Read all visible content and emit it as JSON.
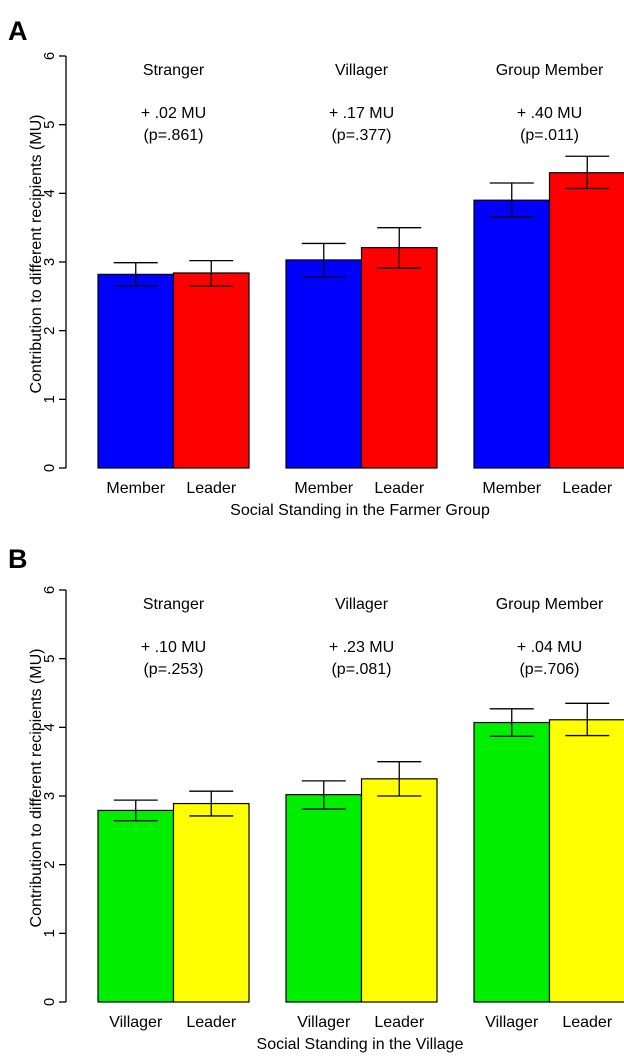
{
  "chart_data": [
    {
      "panel": "A",
      "type": "bar",
      "ylabel": "Contribution to different recipients (MU)",
      "xlabel": "Social Standing in the Farmer Group",
      "ylim": [
        0,
        6
      ],
      "yticks": [
        "0",
        "1",
        "2",
        "3",
        "4",
        "5",
        "6"
      ],
      "groups": [
        {
          "name": "Stranger",
          "effect": "+ .02 MU",
          "p": "(p=.861)",
          "bars": [
            {
              "label": "Member",
              "value": 2.82,
              "err_low": 2.65,
              "err_high": 2.99,
              "color": "#0000ff"
            },
            {
              "label": "Leader",
              "value": 2.84,
              "err_low": 2.65,
              "err_high": 3.02,
              "color": "#ff0000"
            }
          ]
        },
        {
          "name": "Villager",
          "effect": "+ .17 MU",
          "p": "(p=.377)",
          "bars": [
            {
              "label": "Member",
              "value": 3.03,
              "err_low": 2.78,
              "err_high": 3.27,
              "color": "#0000ff"
            },
            {
              "label": "Leader",
              "value": 3.21,
              "err_low": 2.91,
              "err_high": 3.5,
              "color": "#ff0000"
            }
          ]
        },
        {
          "name": "Group Member",
          "effect": "+ .40 MU",
          "p": "(p=.011)",
          "bars": [
            {
              "label": "Member",
              "value": 3.9,
              "err_low": 3.66,
              "err_high": 4.15,
              "color": "#0000ff"
            },
            {
              "label": "Leader",
              "value": 4.3,
              "err_low": 4.07,
              "err_high": 4.54,
              "color": "#ff0000"
            }
          ]
        }
      ]
    },
    {
      "panel": "B",
      "type": "bar",
      "ylabel": "Contribution to different recipients (MU)",
      "xlabel": "Social Standing in the Village",
      "ylim": [
        0,
        6
      ],
      "yticks": [
        "0",
        "1",
        "2",
        "3",
        "4",
        "5",
        "6"
      ],
      "groups": [
        {
          "name": "Stranger",
          "effect": "+ .10 MU",
          "p": "(p=.253)",
          "bars": [
            {
              "label": "Villager",
              "value": 2.79,
              "err_low": 2.64,
              "err_high": 2.94,
              "color": "#00ee00"
            },
            {
              "label": "Leader",
              "value": 2.89,
              "err_low": 2.71,
              "err_high": 3.07,
              "color": "#ffff00"
            }
          ]
        },
        {
          "name": "Villager",
          "effect": "+ .23 MU",
          "p": "(p=.081)",
          "bars": [
            {
              "label": "Villager",
              "value": 3.02,
              "err_low": 2.81,
              "err_high": 3.22,
              "color": "#00ee00"
            },
            {
              "label": "Leader",
              "value": 3.25,
              "err_low": 3.0,
              "err_high": 3.5,
              "color": "#ffff00"
            }
          ]
        },
        {
          "name": "Group Member",
          "effect": "+ .04 MU",
          "p": "(p=.706)",
          "bars": [
            {
              "label": "Villager",
              "value": 4.07,
              "err_low": 3.87,
              "err_high": 4.27,
              "color": "#00ee00"
            },
            {
              "label": "Leader",
              "value": 4.11,
              "err_low": 3.88,
              "err_high": 4.35,
              "color": "#ffff00"
            }
          ]
        }
      ]
    }
  ]
}
